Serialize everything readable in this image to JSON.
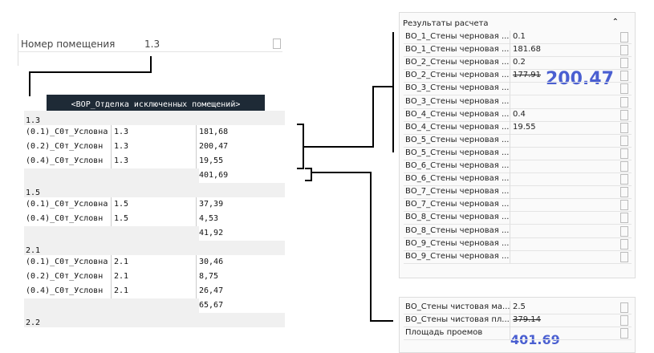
{
  "property_panel": {
    "rows": [
      {
        "name": "Номер помещения",
        "value": "1.3"
      }
    ]
  },
  "schedule": {
    "title": "<ВОР_Отделка исключенных помещений>",
    "rows": [
      {
        "group": "1.3"
      },
      {
        "name": "(0.1)_С0т_Условна",
        "room": "1.3",
        "value": "181,68"
      },
      {
        "name": "(0.2)_С0т_Условн",
        "room": "1.3",
        "value": "200,47"
      },
      {
        "name": "(0.4)_С0т_Условн",
        "room": "1.3",
        "value": "19,55"
      },
      {
        "total": "401,69"
      },
      {
        "group": "1.5"
      },
      {
        "name": "(0.1)_С0т_Условна",
        "room": "1.5",
        "value": "37,39"
      },
      {
        "name": "(0.4)_С0т_Условн",
        "room": "1.5",
        "value": "4,53"
      },
      {
        "total": "41,92"
      },
      {
        "group": "2.1"
      },
      {
        "name": "(0.1)_С0т_Условна",
        "room": "2.1",
        "value": "30,46"
      },
      {
        "name": "(0.2)_С0т_Условн",
        "room": "2.1",
        "value": "8,75"
      },
      {
        "name": "(0.4)_С0т_Условн",
        "room": "2.1",
        "value": "26,47"
      },
      {
        "total": "65,67"
      },
      {
        "group": "2.2"
      }
    ]
  },
  "results_panel": {
    "header": "Результаты расчета",
    "rows": [
      {
        "name": "ВО_1_Стены черновая ...",
        "value": "0.1"
      },
      {
        "name": "ВО_1_Стены черновая ...",
        "value": "181.68"
      },
      {
        "name": "ВО_2_Стены черновая ...",
        "value": "0.2"
      },
      {
        "name": "ВО_2_Стены черновая ...",
        "value": "177.91",
        "struck": true
      },
      {
        "name": "ВО_3_Стены черновая ..."
      },
      {
        "name": "ВО_3_Стены черновая ..."
      },
      {
        "name": "ВО_4_Стены черновая ...",
        "value": "0.4"
      },
      {
        "name": "ВО_4_Стены черновая ...",
        "value": "19.55"
      },
      {
        "name": "ВО_5_Стены черновая ..."
      },
      {
        "name": "ВО_5_Стены черновая ..."
      },
      {
        "name": "ВО_6_Стены черновая ..."
      },
      {
        "name": "ВО_6_Стены черновая ..."
      },
      {
        "name": "ВО_7_Стены черновая ..."
      },
      {
        "name": "ВО_7_Стены черновая ..."
      },
      {
        "name": "ВО_8_Стены черновая ..."
      },
      {
        "name": "ВО_8_Стены черновая ..."
      },
      {
        "name": "ВО_9_Стены черновая ..."
      },
      {
        "name": "ВО_9_Стены черновая ..."
      }
    ]
  },
  "finish_panel": {
    "rows": [
      {
        "name": "ВО_Стены чистовая ма...",
        "value": "2.5"
      },
      {
        "name": "ВО_Стены чистовая пл...",
        "value": "379.14",
        "struck": true
      },
      {
        "name": "Площадь проемов"
      }
    ]
  },
  "annotations": {
    "note_1": "200.47",
    "note_2": "401.69"
  }
}
